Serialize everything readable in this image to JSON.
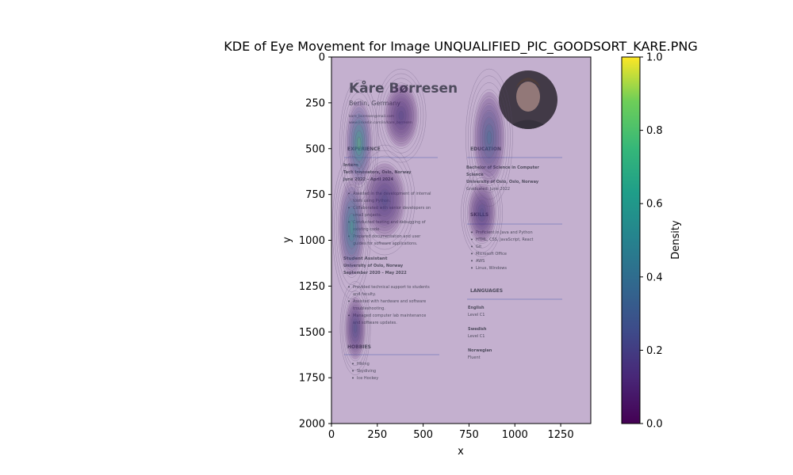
{
  "chart_data": {
    "type": "heatmap",
    "title": "KDE of Eye Movement for Image UNQUALIFIED_PIC_GOODSORT_KARE.PNG",
    "xlabel": "x",
    "ylabel": "y",
    "xlim": [
      0,
      1414
    ],
    "ylim": [
      2000,
      0
    ],
    "x_ticks": [
      "0",
      "250",
      "500",
      "750",
      "1000",
      "1250"
    ],
    "x_tick_values": [
      0,
      250,
      500,
      750,
      1000,
      1250
    ],
    "y_ticks": [
      "0",
      "250",
      "500",
      "750",
      "1000",
      "1250",
      "1500",
      "1750",
      "2000"
    ],
    "y_tick_values": [
      0,
      250,
      500,
      750,
      1000,
      1250,
      1500,
      1750,
      2000
    ],
    "colorbar": {
      "label": "Density",
      "colormap": "viridis",
      "range": [
        0,
        1
      ],
      "ticks": [
        "0.0",
        "0.2",
        "0.4",
        "0.6",
        "0.8",
        "1.0"
      ],
      "tick_values": [
        0,
        0.2,
        0.4,
        0.6,
        0.8,
        1.0
      ]
    },
    "hotspots": [
      {
        "x": 150,
        "y": 470,
        "density": 1.0
      },
      {
        "x": 110,
        "y": 930,
        "density": 0.85
      },
      {
        "x": 860,
        "y": 440,
        "density": 0.55
      },
      {
        "x": 130,
        "y": 1480,
        "density": 0.35
      },
      {
        "x": 290,
        "y": 780,
        "density": 0.3
      },
      {
        "x": 820,
        "y": 850,
        "density": 0.3
      },
      {
        "x": 380,
        "y": 320,
        "density": 0.25
      }
    ]
  },
  "background_cv": {
    "name": "Kåre Børresen",
    "location": "Berlin, Germany",
    "contact": [
      "kare_borresen@mail.com",
      "www.linkedin.com/in/kare_borresen"
    ],
    "experience_heading": "EXPERIENCE",
    "job1": [
      "Intern",
      "Tech Innovators, Oslo, Norway",
      "June 2022 – April 2024"
    ],
    "job1_bullets": [
      "Assisted in the development of internal",
      "tools using Python.",
      "Collaborated with senior developers on",
      "small projects.",
      "Conducted testing and debugging of",
      "existing code.",
      "Prepared documentation and user",
      "guides for software applications."
    ],
    "job2": [
      "Student Assistant",
      "University of Oslo, Norway",
      "September 2020 – May 2022"
    ],
    "job2_bullets": [
      "Provided technical support to students",
      "and faculty.",
      "Assisted with hardware and software",
      "troubleshooting.",
      "Managed computer lab maintenance",
      "and software updates."
    ],
    "hobbies_heading": "HOBBIES",
    "hobbies": [
      "Hiking",
      "Skydiving",
      "Ice Hockey"
    ],
    "education_heading": "EDUCATION",
    "education": [
      "Bachelor of Science in Computer",
      "Science",
      "University of Oslo, Oslo, Norway",
      "Graduated: June 2022"
    ],
    "skills_heading": "SKILLS",
    "skills": [
      "Proficient in Java and Python",
      "HTML, CSS, JavaScript, React",
      "Git",
      "Microsoft Office",
      "AWS",
      "Linux, Windows"
    ],
    "languages_heading": "LANGUAGES",
    "languages": [
      [
        "English",
        "Level C1"
      ],
      [
        "Swedish",
        "Level C1"
      ],
      [
        "Norwegian",
        "Fluent"
      ]
    ]
  },
  "colors": {
    "overlay": "#c4b0cf",
    "contour": "#5a4a6e",
    "accent": "#4a55b8"
  }
}
